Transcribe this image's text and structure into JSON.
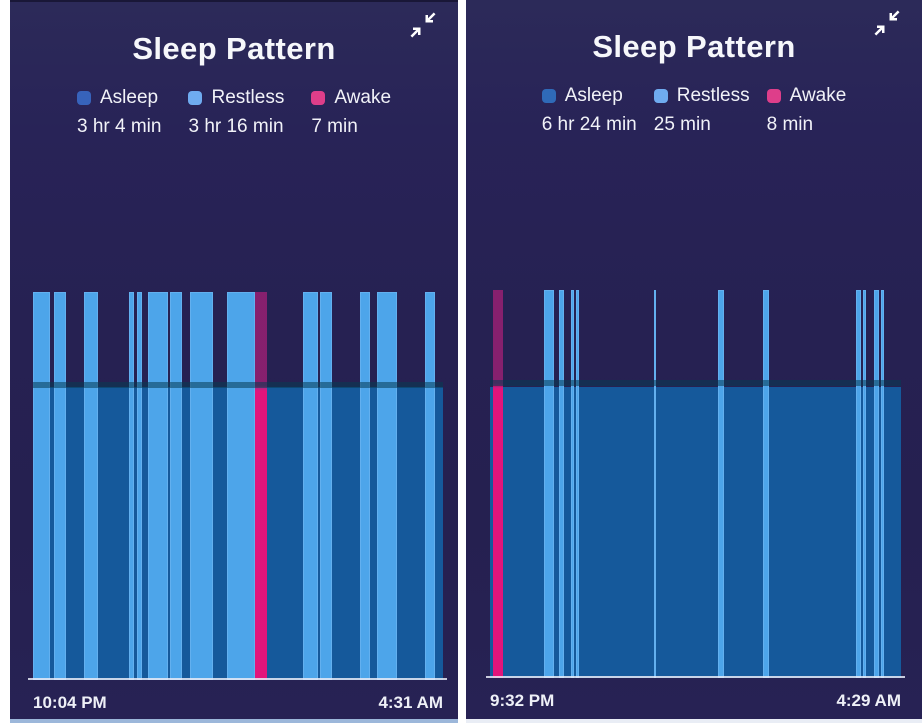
{
  "colors": {
    "background_navy": "#262152",
    "asleep_fill": "#15599b",
    "restless_bar": "#4da5ea",
    "awake_bar": "#ec1179",
    "axis_line": "#e6eaf6",
    "text": "#f1f2f8",
    "divider_white": "#ffffff"
  },
  "chart_data": [
    {
      "type": "bar",
      "title": "Sleep Pattern",
      "icon": "collapse-icon",
      "x_start": "10:04 PM",
      "x_end": "4:31 AM",
      "legend": [
        {
          "label": "Asleep",
          "duration": "3 hr 4 min",
          "color": "#3763bb"
        },
        {
          "label": "Restless",
          "duration": "3 hr 16 min",
          "color": "#6fabf0"
        },
        {
          "label": "Awake",
          "duration": "7 min",
          "color": "#de3e8a"
        }
      ],
      "asleep_band_height_pct": 75.5,
      "axis_note": "time axis spans 10:04 PM to 4:31 AM; segment positions are % of that span",
      "segments": [
        {
          "state": "restless",
          "start_pct": 0.0,
          "width_pct": 4.1
        },
        {
          "state": "restless",
          "start_pct": 5.1,
          "width_pct": 2.9
        },
        {
          "state": "restless",
          "start_pct": 12.4,
          "width_pct": 3.4
        },
        {
          "state": "restless",
          "start_pct": 23.4,
          "width_pct": 1.2
        },
        {
          "state": "restless",
          "start_pct": 25.4,
          "width_pct": 1.2
        },
        {
          "state": "restless",
          "start_pct": 28.0,
          "width_pct": 4.9
        },
        {
          "state": "restless",
          "start_pct": 33.4,
          "width_pct": 2.9
        },
        {
          "state": "restless",
          "start_pct": 38.3,
          "width_pct": 5.6
        },
        {
          "state": "restless",
          "start_pct": 47.3,
          "width_pct": 6.8
        },
        {
          "state": "awake",
          "start_pct": 54.1,
          "width_pct": 2.9
        },
        {
          "state": "restless",
          "start_pct": 65.9,
          "width_pct": 3.6
        },
        {
          "state": "restless",
          "start_pct": 70.0,
          "width_pct": 2.9
        },
        {
          "state": "restless",
          "start_pct": 79.8,
          "width_pct": 2.4
        },
        {
          "state": "restless",
          "start_pct": 83.9,
          "width_pct": 4.9
        },
        {
          "state": "restless",
          "start_pct": 95.6,
          "width_pct": 2.4
        }
      ]
    },
    {
      "type": "bar",
      "title": "Sleep Pattern",
      "icon": "collapse-icon",
      "x_start": "9:32 PM",
      "x_end": "4:29 AM",
      "legend": [
        {
          "label": "Asleep",
          "duration": "6 hr 24 min",
          "color": "#2f6ab8"
        },
        {
          "label": "Restless",
          "duration": "25 min",
          "color": "#6fabf0"
        },
        {
          "label": "Awake",
          "duration": "8 min",
          "color": "#de3e8a"
        }
      ],
      "asleep_band_height_pct": 75.0,
      "axis_note": "time axis spans 9:32 PM to 4:29 AM; segment positions are % of that span",
      "segments": [
        {
          "state": "awake",
          "start_pct": 0.7,
          "width_pct": 2.5
        },
        {
          "state": "restless",
          "start_pct": 13.1,
          "width_pct": 2.5
        },
        {
          "state": "restless",
          "start_pct": 16.8,
          "width_pct": 1.2
        },
        {
          "state": "restless",
          "start_pct": 19.7,
          "width_pct": 0.7
        },
        {
          "state": "restless",
          "start_pct": 20.9,
          "width_pct": 0.8
        },
        {
          "state": "restless",
          "start_pct": 39.9,
          "width_pct": 0.5
        },
        {
          "state": "restless",
          "start_pct": 55.4,
          "width_pct": 1.6
        },
        {
          "state": "restless",
          "start_pct": 66.4,
          "width_pct": 1.5
        },
        {
          "state": "restless",
          "start_pct": 89.1,
          "width_pct": 1.2
        },
        {
          "state": "restless",
          "start_pct": 90.8,
          "width_pct": 0.7
        },
        {
          "state": "restless",
          "start_pct": 93.4,
          "width_pct": 1.2
        },
        {
          "state": "restless",
          "start_pct": 95.1,
          "width_pct": 0.8
        }
      ]
    }
  ]
}
